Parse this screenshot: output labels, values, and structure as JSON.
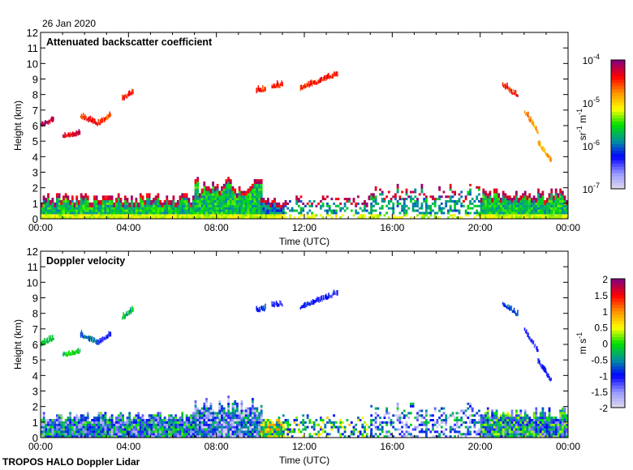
{
  "date_label": "26 Jan 2020",
  "footer": "TROPOS HALO Doppler Lidar",
  "chart_data": [
    {
      "type": "heatmap",
      "title": "Attenuated backscatter coefficient",
      "xlabel": "Time (UTC)",
      "ylabel": "Height (km)",
      "xlim": [
        0,
        24
      ],
      "ylim": [
        0,
        12
      ],
      "x_ticks": [
        0,
        4,
        8,
        12,
        16,
        20,
        24
      ],
      "x_tick_labels": [
        "00:00",
        "04:00",
        "08:00",
        "12:00",
        "16:00",
        "20:00",
        "00:00"
      ],
      "y_ticks": [
        0,
        1,
        2,
        3,
        4,
        5,
        6,
        7,
        8,
        9,
        10,
        11,
        12
      ],
      "y_tick_labels": [
        "0",
        "1",
        "2",
        "3",
        "4",
        "5",
        "6",
        "7",
        "8",
        "9",
        "10",
        "11",
        "12"
      ],
      "colorbar": {
        "scale": "log",
        "range": [
          1e-07,
          0.0001
        ],
        "tick_labels": [
          "10",
          "10",
          "10",
          "10"
        ],
        "tick_exponents": [
          "-7",
          "-6",
          "-5",
          "-4"
        ],
        "label_base": "sr",
        "label_exp1": "-1",
        "label_mid": " m",
        "label_exp2": "-1"
      },
      "features": [
        {
          "t": [
            0.0,
            0.6
          ],
          "h": [
            5.9,
            6.3
          ],
          "v": 0.95
        },
        {
          "t": [
            1.0,
            1.8
          ],
          "h": [
            5.25,
            5.4
          ],
          "v": 0.9
        },
        {
          "t": [
            1.8,
            2.6
          ],
          "h": [
            6.5,
            6.0
          ],
          "v": 0.85
        },
        {
          "t": [
            2.6,
            3.2
          ],
          "h": [
            6.0,
            6.6
          ],
          "v": 0.8
        },
        {
          "t": [
            3.7,
            4.2
          ],
          "h": [
            7.6,
            8.1
          ],
          "v": 0.85
        },
        {
          "t": [
            9.8,
            10.2
          ],
          "h": [
            8.1,
            8.2
          ],
          "v": 0.85
        },
        {
          "t": [
            10.5,
            11.0
          ],
          "h": [
            8.4,
            8.5
          ],
          "v": 0.85
        },
        {
          "t": [
            11.8,
            13.5
          ],
          "h": [
            8.3,
            9.2
          ],
          "v": 0.85
        },
        {
          "t": [
            21.0,
            21.7
          ],
          "h": [
            8.5,
            7.8
          ],
          "v": 0.85
        },
        {
          "t": [
            22.0,
            22.6
          ],
          "h": [
            6.8,
            5.5
          ],
          "v": 0.72
        },
        {
          "t": [
            22.6,
            23.2
          ],
          "h": [
            4.8,
            3.6
          ],
          "v": 0.72
        }
      ],
      "boundary_layer": [
        {
          "t": [
            0,
            7
          ],
          "top": 1.6,
          "v": 0.45
        },
        {
          "t": [
            7,
            10
          ],
          "top": 2.6,
          "v": 0.45
        },
        {
          "t": [
            10,
            11
          ],
          "top": 1.4,
          "v": 0.35
        },
        {
          "t": [
            11,
            15
          ],
          "top": 1.5,
          "v": 0.4,
          "sparse": true
        },
        {
          "t": [
            15,
            20
          ],
          "top": 2.2,
          "v": 0.4,
          "sparse": true
        },
        {
          "t": [
            20,
            24
          ],
          "top": 1.9,
          "v": 0.45
        }
      ]
    },
    {
      "type": "heatmap",
      "title": "Doppler velocity",
      "xlabel": "Time (UTC)",
      "ylabel": "Height (km)",
      "xlim": [
        0,
        24
      ],
      "ylim": [
        0,
        12
      ],
      "colorbar": {
        "scale": "linear",
        "range": [
          -2,
          2
        ],
        "tick_labels": [
          "-2",
          "-1.5",
          "-1",
          "-0.5",
          "0",
          "0.5",
          "1",
          "1.5",
          "2"
        ],
        "label_base": "m",
        "label_mid": " s",
        "label_exp2": "-1"
      },
      "features": [
        {
          "t": [
            0.0,
            0.6
          ],
          "h": [
            5.9,
            6.3
          ],
          "v": -0.2
        },
        {
          "t": [
            1.0,
            1.8
          ],
          "h": [
            5.25,
            5.4
          ],
          "v": -0.1
        },
        {
          "t": [
            1.8,
            2.6
          ],
          "h": [
            6.5,
            6.0
          ],
          "v": -0.6
        },
        {
          "t": [
            2.6,
            3.2
          ],
          "h": [
            6.0,
            6.6
          ],
          "v": -1.0
        },
        {
          "t": [
            3.7,
            4.2
          ],
          "h": [
            7.6,
            8.1
          ],
          "v": -0.2
        },
        {
          "t": [
            9.8,
            10.2
          ],
          "h": [
            8.1,
            8.2
          ],
          "v": -0.9
        },
        {
          "t": [
            10.5,
            11.0
          ],
          "h": [
            8.4,
            8.5
          ],
          "v": -1.2
        },
        {
          "t": [
            11.8,
            13.5
          ],
          "h": [
            8.3,
            9.2
          ],
          "v": -1.1
        },
        {
          "t": [
            21.0,
            21.7
          ],
          "h": [
            8.5,
            7.8
          ],
          "v": -0.8
        },
        {
          "t": [
            22.0,
            22.6
          ],
          "h": [
            6.8,
            5.5
          ],
          "v": -1.2
        },
        {
          "t": [
            22.6,
            23.2
          ],
          "h": [
            4.8,
            3.6
          ],
          "v": -1.1
        }
      ],
      "boundary_layer": [
        {
          "t": [
            0,
            7
          ],
          "top": 1.6,
          "v": -0.8
        },
        {
          "t": [
            7,
            10
          ],
          "top": 2.6,
          "v": -1.1
        },
        {
          "t": [
            10,
            11
          ],
          "top": 1.4,
          "v": 0.2
        },
        {
          "t": [
            11,
            15
          ],
          "top": 1.5,
          "v": -0.2,
          "sparse": true
        },
        {
          "t": [
            15,
            20
          ],
          "top": 2.2,
          "v": -1.0,
          "sparse": true
        },
        {
          "t": [
            20,
            24
          ],
          "top": 1.9,
          "v": -0.6
        }
      ]
    }
  ]
}
